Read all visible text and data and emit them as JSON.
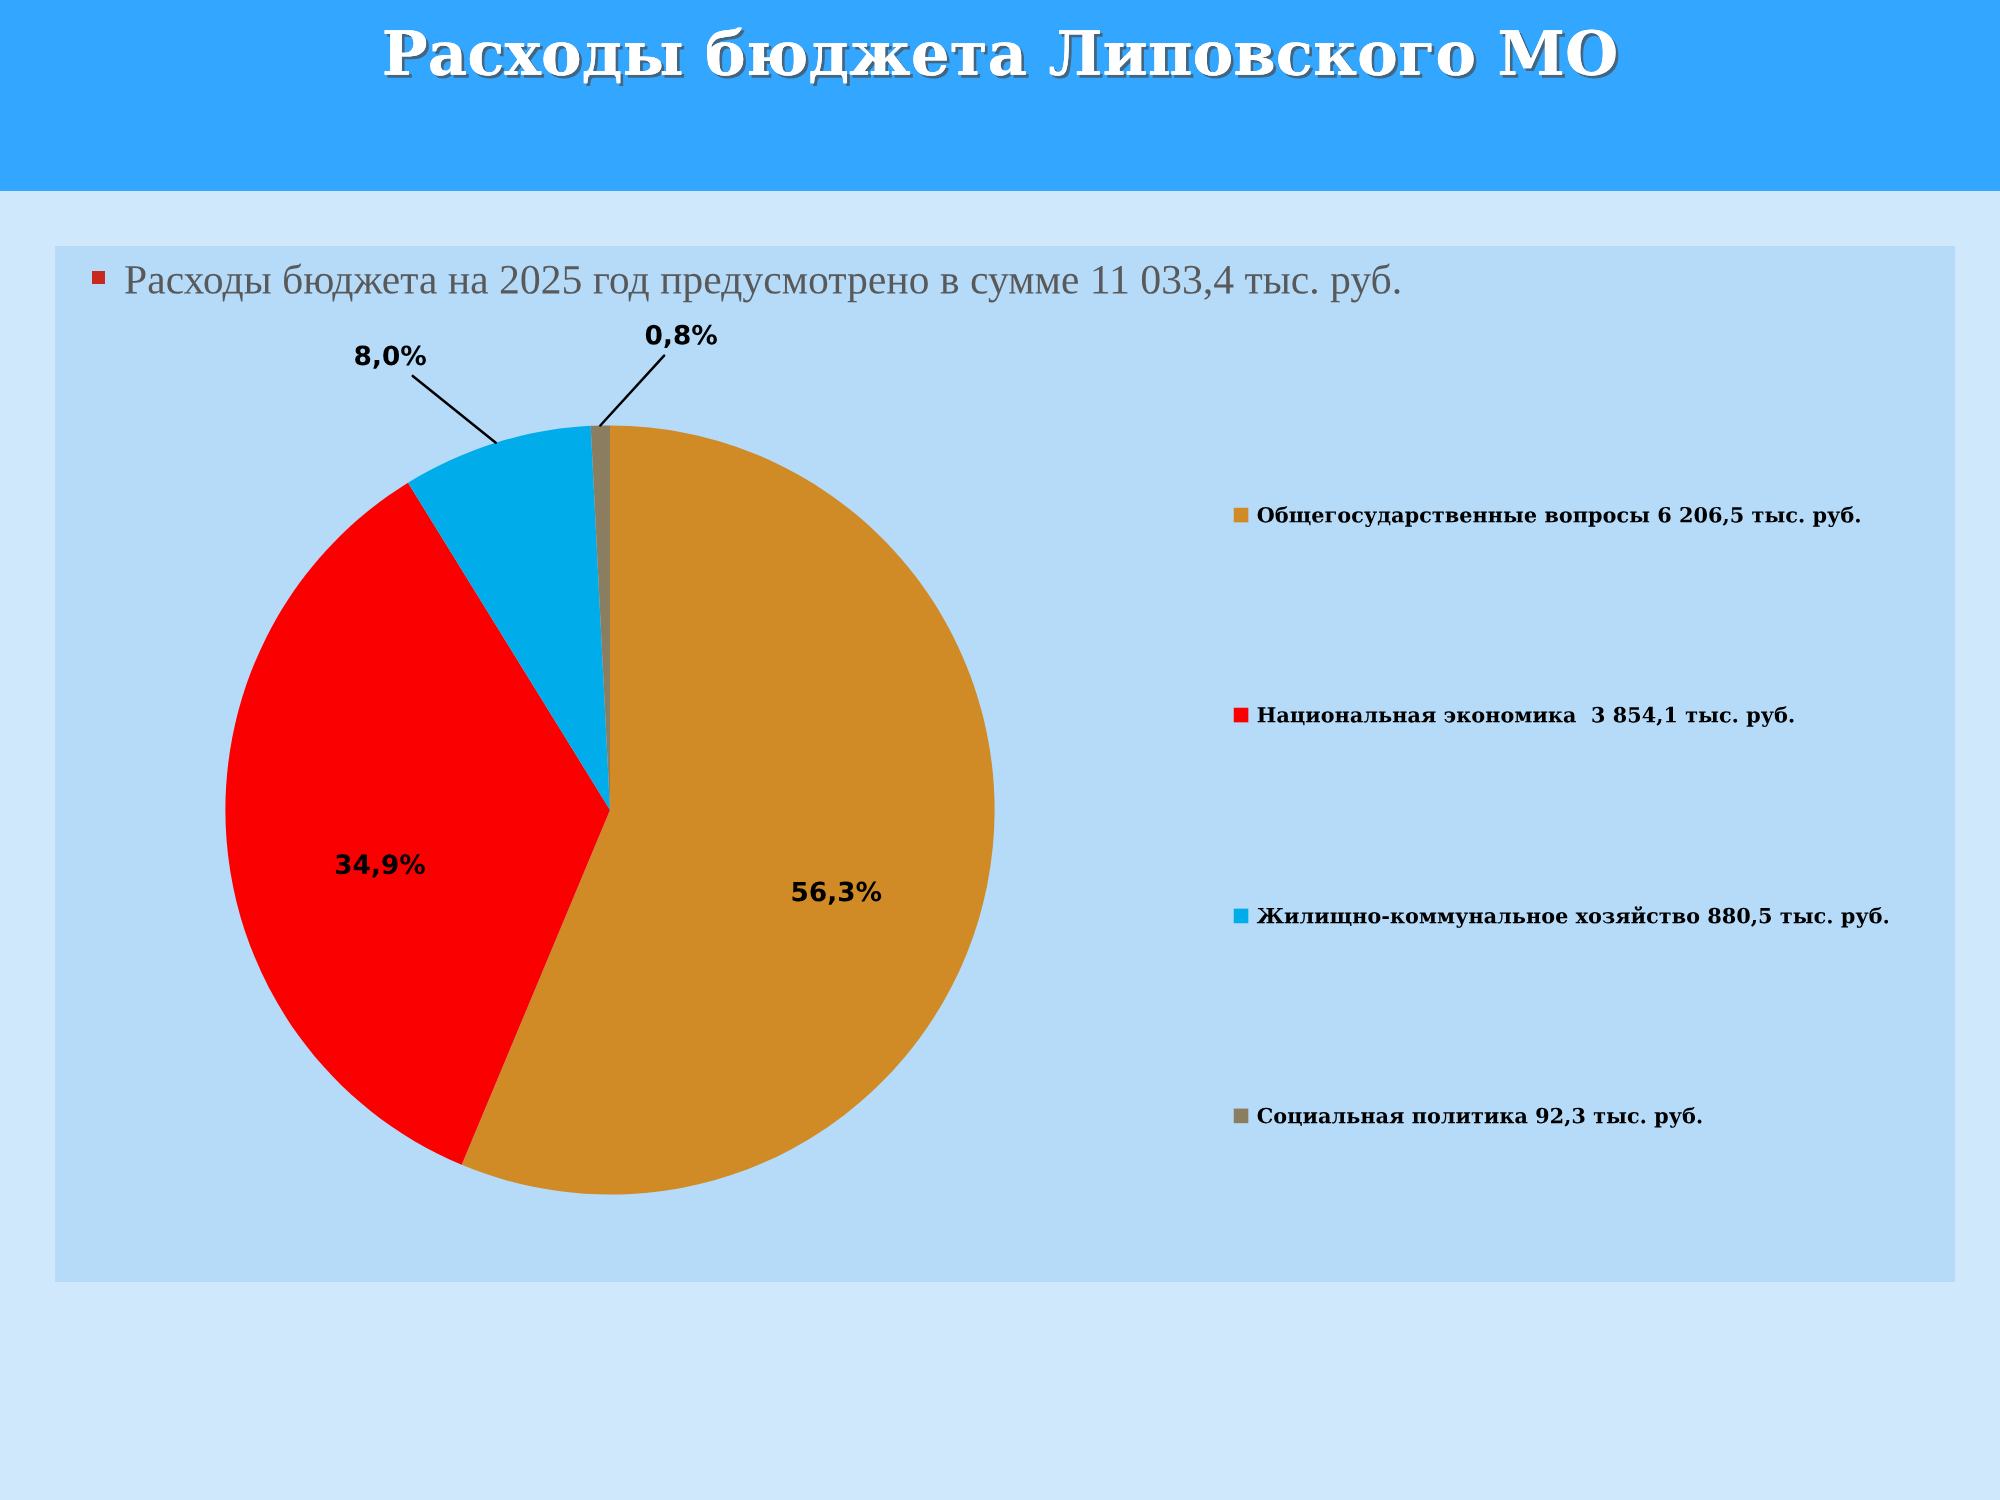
{
  "chart_data": {
    "type": "pie",
    "title": "Расходы бюджета Липовского МО",
    "subtitle": "Расходы бюджета на 2025 год предусмотрено в сумме 11 033,4 тыс. руб.",
    "categories": [
      "Общегосударственные вопросы 6 206,5 тыс. руб.",
      "Национальная экономика  3 854,1 тыс. руб.",
      "Жилищно-коммунальное хозяйство 880,5 тыс. руб.",
      "Социальная политика 92,3 тыс. руб."
    ],
    "values": [
      56.3,
      34.9,
      8.0,
      0.8
    ],
    "colors": [
      "#d08a26",
      "#fa0000",
      "#00adea",
      "#8b7e60"
    ],
    "value_labels": [
      "56,3%",
      "34,9%",
      "8,0%",
      "0,8%"
    ],
    "legend": "right"
  }
}
